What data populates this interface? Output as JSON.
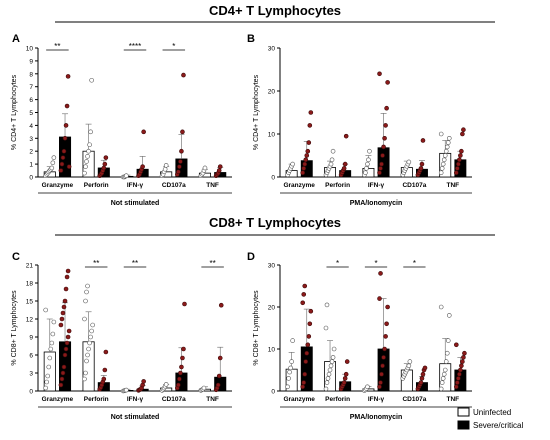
{
  "section_titles": {
    "cd4": "CD4+ T Lymphocytes",
    "cd8": "CD8+ T Lymphocytes"
  },
  "legend": {
    "uninfected": "Uninfected",
    "severe": "Severe/critical",
    "uninfected_color": "#ffffff",
    "severe_color": "#000000",
    "dot_severe_color": "#8b1a1a"
  },
  "chart_data": [
    {
      "panel": "A",
      "type": "bar",
      "ylabel": "% CD4+ T Lymphocytes",
      "xlabel": "Not stimulated",
      "ylim": [
        0,
        10
      ],
      "yticks": [
        0,
        1,
        2,
        3,
        4,
        5,
        6,
        7,
        8,
        9,
        10
      ],
      "categories": [
        "Granzyme",
        "Perforin",
        "IFN-γ",
        "CD107a",
        "TNF"
      ],
      "series": [
        {
          "name": "Uninfected",
          "values": [
            0.4,
            2.0,
            0.05,
            0.4,
            0.3
          ],
          "err": [
            0.4,
            2.1,
            0.1,
            0.4,
            0.3
          ]
        },
        {
          "name": "Severe/critical",
          "values": [
            3.1,
            0.7,
            0.6,
            1.4,
            0.35
          ],
          "err": [
            1.8,
            0.6,
            1.0,
            1.9,
            0.4
          ]
        }
      ],
      "points": [
        [
          [
            0.1,
            0.2,
            0.3,
            0.4,
            0.5,
            0.6,
            0.7,
            1.1,
            1.5
          ],
          [
            0.5,
            1.0,
            1.5,
            2.0,
            3.0,
            4.0,
            5.5,
            7.8,
            0.8
          ]
        ],
        [
          [
            0.3,
            0.8,
            1.2,
            1.6,
            2.0,
            2.5,
            3.5,
            7.5
          ],
          [
            0.1,
            0.2,
            0.3,
            0.5,
            0.7,
            1.0,
            1.5
          ]
        ],
        [
          [
            0,
            0,
            0.05,
            0.1
          ],
          [
            0.1,
            0.2,
            0.4,
            0.6,
            0.8,
            3.5
          ]
        ],
        [
          [
            0.1,
            0.2,
            0.4,
            0.6,
            0.9
          ],
          [
            0.2,
            0.4,
            0.8,
            1.2,
            2.0,
            3.5,
            7.9
          ]
        ],
        [
          [
            0.1,
            0.2,
            0.3,
            0.5,
            0.7
          ],
          [
            0.1,
            0.2,
            0.3,
            0.5,
            0.8
          ]
        ]
      ],
      "significance": [
        {
          "category": 0,
          "label": "**"
        },
        {
          "category": 2,
          "label": "****"
        },
        {
          "category": 3,
          "label": "*"
        }
      ]
    },
    {
      "panel": "B",
      "type": "bar",
      "ylabel": "% CD4+ T Lymphocytes",
      "xlabel": "PMA/Ionomycin",
      "ylim": [
        0,
        30
      ],
      "yticks": [
        0,
        10,
        20,
        30
      ],
      "categories": [
        "Granzyme",
        "Perforin",
        "IFN-γ",
        "CD107a",
        "TNF"
      ],
      "series": [
        {
          "name": "Uninfected",
          "values": [
            1.5,
            2.2,
            2.0,
            2.2,
            5.5
          ],
          "err": [
            1.5,
            1.5,
            3.0,
            1.5,
            3.0
          ]
        },
        {
          "name": "Severe/critical",
          "values": [
            3.8,
            1.5,
            6.8,
            1.8,
            4.0
          ],
          "err": [
            4.5,
            1.5,
            8.0,
            2.0,
            2.0
          ]
        }
      ],
      "points": [
        [
          [
            0.5,
            1.0,
            1.5,
            2.0,
            2.5,
            3.0
          ],
          [
            1,
            2,
            3,
            4,
            5,
            6,
            8,
            12,
            15
          ]
        ],
        [
          [
            0.5,
            1,
            1.5,
            2,
            2.5,
            3,
            4,
            6
          ],
          [
            0.5,
            1,
            1.5,
            2,
            3,
            9.5
          ]
        ],
        [
          [
            0.5,
            1,
            2,
            3,
            4,
            6
          ],
          [
            1,
            2,
            3,
            5,
            7,
            9,
            12,
            16,
            22,
            24
          ]
        ],
        [
          [
            0.5,
            1,
            1.5,
            2,
            2.5,
            3,
            3.5
          ],
          [
            0.5,
            1,
            1.5,
            2,
            3,
            8.5
          ]
        ],
        [
          [
            1,
            2,
            3,
            4,
            5,
            6,
            7,
            8,
            9,
            10
          ],
          [
            1,
            2,
            3,
            4,
            5,
            6,
            10,
            11
          ]
        ]
      ],
      "significance": []
    },
    {
      "panel": "C",
      "type": "bar",
      "ylabel": "% CD8+ T Lymphocytes",
      "xlabel": "Not stimulated",
      "ylim": [
        0,
        21
      ],
      "yticks": [
        0,
        3,
        6,
        9,
        12,
        15,
        18,
        21
      ],
      "categories": [
        "Granzyme",
        "Perforin",
        "IFN-γ",
        "CD107a",
        "TNF"
      ],
      "series": [
        {
          "name": "Uninfected",
          "values": [
            6.5,
            8.2,
            0.1,
            0.5,
            0.3
          ],
          "err": [
            5.5,
            5.0,
            0.2,
            0.6,
            0.4
          ]
        },
        {
          "name": "Severe/critical",
          "values": [
            8.2,
            1.4,
            0.3,
            3.0,
            2.3
          ],
          "err": [
            6.5,
            1.2,
            0.6,
            4.2,
            5.0
          ]
        }
      ],
      "points": [
        [
          [
            0.5,
            1.5,
            2.5,
            4,
            5.5,
            7,
            8,
            9.5,
            11.5,
            13.5
          ],
          [
            1,
            2,
            3,
            4,
            6,
            7,
            8,
            9,
            10,
            11,
            12,
            13,
            14,
            15,
            17,
            19,
            20
          ]
        ],
        [
          [
            2,
            3,
            5,
            6,
            7,
            8,
            9,
            10,
            11,
            12,
            15,
            16.5,
            17.5
          ],
          [
            0.3,
            0.6,
            1,
            1.5,
            2,
            3.5,
            6.5
          ]
        ],
        [
          [
            0,
            0.05,
            0.1,
            0.15
          ],
          [
            0.1,
            0.2,
            0.3,
            0.5,
            1,
            1.6
          ]
        ],
        [
          [
            0.1,
            0.3,
            0.5,
            0.8,
            1.1
          ],
          [
            0.5,
            1,
            2,
            3,
            4,
            5.5,
            7,
            14.5
          ]
        ],
        [
          [
            0.1,
            0.2,
            0.3,
            0.5
          ],
          [
            0.2,
            0.5,
            1,
            2.5,
            5.5,
            14.3
          ]
        ]
      ],
      "significance": [
        {
          "category": 1,
          "label": "**"
        },
        {
          "category": 2,
          "label": "**"
        },
        {
          "category": 4,
          "label": "**"
        }
      ]
    },
    {
      "panel": "D",
      "type": "bar",
      "ylabel": "% CD8+ T Lymphocytes",
      "xlabel": "PMA/Ionomycin",
      "ylim": [
        0,
        30
      ],
      "yticks": [
        0,
        10,
        20,
        30
      ],
      "categories": [
        "Granzyme",
        "Perforin",
        "IFN-γ",
        "CD107a",
        "TNF"
      ],
      "series": [
        {
          "name": "Uninfected",
          "values": [
            5.2,
            7.0,
            0.5,
            5.0,
            6.5
          ],
          "err": [
            4.0,
            5.0,
            0.6,
            1.5,
            6.0
          ]
        },
        {
          "name": "Severe/critical",
          "values": [
            10.5,
            2.2,
            10.0,
            2.0,
            5.0
          ],
          "err": [
            9.0,
            1.8,
            12.0,
            1.5,
            3.0
          ]
        }
      ],
      "points": [
        [
          [
            1,
            3,
            4.5,
            5.5,
            7,
            12
          ],
          [
            1,
            2,
            4,
            7,
            9,
            11,
            13,
            16,
            19,
            21,
            23,
            25
          ]
        ],
        [
          [
            0.5,
            2,
            3,
            4,
            5,
            6,
            7,
            8,
            10,
            15,
            20.5
          ],
          [
            0.5,
            1,
            1.5,
            2,
            3,
            4,
            7
          ]
        ],
        [
          [
            0.1,
            0.3,
            0.6,
            1
          ],
          [
            1,
            2,
            4,
            6,
            8,
            10,
            13,
            16,
            20,
            22,
            28
          ]
        ],
        [
          [
            3,
            3.5,
            4,
            4.5,
            5,
            5.5,
            6,
            7
          ],
          [
            0.5,
            1,
            1.5,
            2,
            3,
            4,
            5,
            5.5
          ]
        ],
        [
          [
            0.5,
            2,
            3,
            4,
            5,
            7,
            9,
            12,
            18,
            20
          ],
          [
            1,
            2,
            3,
            4,
            5,
            6,
            7,
            8,
            9,
            11
          ]
        ]
      ],
      "significance": [
        {
          "category": 1,
          "label": "*"
        },
        {
          "category": 2,
          "label": "*"
        },
        {
          "category": 3,
          "label": "*"
        }
      ]
    }
  ]
}
